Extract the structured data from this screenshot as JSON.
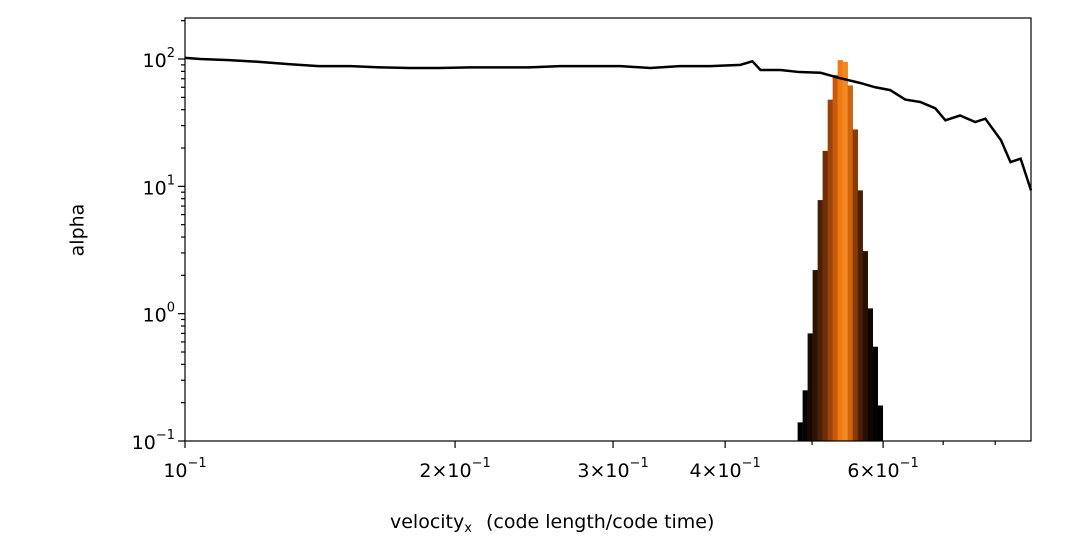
{
  "chart_data": {
    "type": "combo",
    "xlabel": "velocity",
    "xlabel_subscript": "x",
    "xlabel_rest": "(code length/code time)",
    "ylabel": "alpha",
    "xscale": "log",
    "yscale": "log",
    "xlim": [
      0.1,
      0.877
    ],
    "ylim": [
      0.1,
      210
    ],
    "xticks": [
      {
        "value": 0.1,
        "label": "10",
        "exponent": "−1"
      },
      {
        "value": 0.2,
        "label": "2×10",
        "exponent": "−1"
      },
      {
        "value": 0.3,
        "label": "3×10",
        "exponent": "−1"
      },
      {
        "value": 0.4,
        "label": "4×10",
        "exponent": "−1"
      },
      {
        "value": 0.6,
        "label": "6×10",
        "exponent": "−1"
      }
    ],
    "xminor": [
      0.5,
      0.7,
      0.8
    ],
    "yticks": [
      {
        "value": 0.1,
        "label": "10",
        "exponent": "−1"
      },
      {
        "value": 1,
        "label": "10",
        "exponent": "0"
      },
      {
        "value": 10,
        "label": "10",
        "exponent": "1"
      },
      {
        "value": 100,
        "label": "10",
        "exponent": "2"
      }
    ],
    "yminor": [
      0.2,
      0.3,
      0.4,
      0.5,
      0.6,
      0.7,
      0.8,
      0.9,
      2,
      3,
      4,
      5,
      6,
      7,
      8,
      9,
      20,
      30,
      40,
      50,
      60,
      70,
      80,
      90,
      200
    ],
    "series": [
      {
        "type": "histogram",
        "bins": [
          0.4818,
          0.488,
          0.4943,
          0.5007,
          0.5072,
          0.5137,
          0.5204,
          0.5271,
          0.5339,
          0.5408,
          0.5478,
          0.5549,
          0.5621,
          0.5693,
          0.5767,
          0.5842,
          0.5917,
          0.5994
        ],
        "values": [
          0.14,
          0.25,
          0.7,
          2.2,
          7.8,
          19,
          48,
          75,
          98,
          95,
          62,
          28,
          9.3,
          3.1,
          1.1,
          0.55,
          0.19
        ],
        "colors": [
          "#000000",
          "#0a0401",
          "#1a0a02",
          "#2e1304",
          "#4a1f06",
          "#6e2f08",
          "#9a430a",
          "#c85a0c",
          "#f07a14",
          "#f08a20",
          "#d0640c",
          "#8a3a08",
          "#4a1f06",
          "#2a1003",
          "#120602",
          "#050201",
          "#000000"
        ]
      },
      {
        "type": "line",
        "color": "#000000",
        "x": [
          0.1,
          0.104,
          0.112,
          0.121,
          0.131,
          0.141,
          0.153,
          0.165,
          0.178,
          0.192,
          0.208,
          0.224,
          0.242,
          0.262,
          0.283,
          0.306,
          0.33,
          0.356,
          0.385,
          0.416,
          0.429,
          0.438,
          0.461,
          0.484,
          0.511,
          0.536,
          0.565,
          0.588,
          0.611,
          0.635,
          0.66,
          0.686,
          0.704,
          0.731,
          0.76,
          0.78,
          0.812,
          0.832,
          0.854,
          0.877
        ],
        "values": [
          102,
          100,
          98,
          95,
          91,
          88,
          88,
          86,
          85,
          85,
          86,
          86,
          86,
          88,
          88,
          88,
          85,
          88,
          88,
          90,
          96,
          82,
          82,
          79,
          78,
          71,
          65,
          60,
          57,
          48,
          46,
          41,
          33,
          36,
          32,
          34,
          23,
          15.5,
          16.5,
          9.3
        ]
      }
    ]
  }
}
